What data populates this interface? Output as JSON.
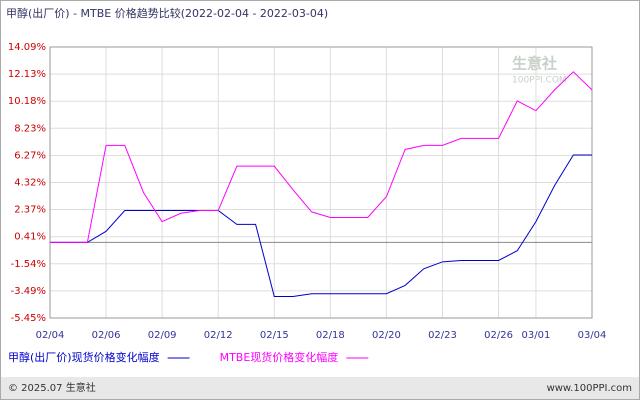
{
  "chart_data": {
    "type": "line",
    "title": "甲醇(出厂价) - MTBE 价格趋势比较(2022-02-04 - 2022-03-04)",
    "watermark": [
      "生意社",
      "100PPI.COM"
    ],
    "categories": [
      "02/04",
      null,
      null,
      "02/06",
      null,
      null,
      "02/09",
      null,
      null,
      "02/12",
      null,
      null,
      "02/15",
      null,
      null,
      "02/18",
      null,
      null,
      "02/20",
      null,
      null,
      "02/23",
      null,
      null,
      "02/26",
      null,
      "03/01",
      null,
      null,
      "03/04"
    ],
    "series": [
      {
        "name": "甲醇(出厂价)现货价格变化幅度",
        "color": "#0000cc",
        "values": [
          0,
          0,
          0,
          0.8,
          2.3,
          2.3,
          2.3,
          2.3,
          2.3,
          2.3,
          1.3,
          1.3,
          -3.9,
          -3.9,
          -3.7,
          -3.7,
          -3.7,
          -3.7,
          -3.7,
          -3.1,
          -1.9,
          -1.4,
          -1.3,
          -1.3,
          -1.3,
          -0.6,
          1.5,
          4.1,
          6.3,
          6.3
        ]
      },
      {
        "name": "MTBE现货价格变化幅度",
        "color": "#ff00ff",
        "values": [
          0,
          0,
          0,
          7.0,
          7.0,
          3.6,
          1.5,
          2.1,
          2.3,
          2.3,
          5.5,
          5.5,
          5.5,
          3.8,
          2.2,
          1.8,
          1.8,
          1.8,
          3.3,
          6.7,
          7.0,
          7.0,
          7.5,
          7.5,
          7.5,
          10.2,
          9.5,
          11.0,
          12.3,
          11.0
        ]
      }
    ],
    "ylim": [
      -5.45,
      14.09
    ],
    "yticks": [
      {
        "value": 14.09,
        "label": "14.09%"
      },
      {
        "value": 12.13,
        "label": "12.13%"
      },
      {
        "value": 10.18,
        "label": "10.18%"
      },
      {
        "value": 8.23,
        "label": "8.23%"
      },
      {
        "value": 6.27,
        "label": "6.27%"
      },
      {
        "value": 4.32,
        "label": "4.32%"
      },
      {
        "value": 2.37,
        "label": "2.37%"
      },
      {
        "value": 0.41,
        "label": "0.41%"
      },
      {
        "value": -1.54,
        "label": "-1.54%"
      },
      {
        "value": -3.49,
        "label": "-3.49%"
      },
      {
        "value": -5.45,
        "label": "-5.45%"
      }
    ],
    "grid": true,
    "footer_left": "© 2025.07 生意社",
    "footer_right": "www.100PPI.com"
  }
}
